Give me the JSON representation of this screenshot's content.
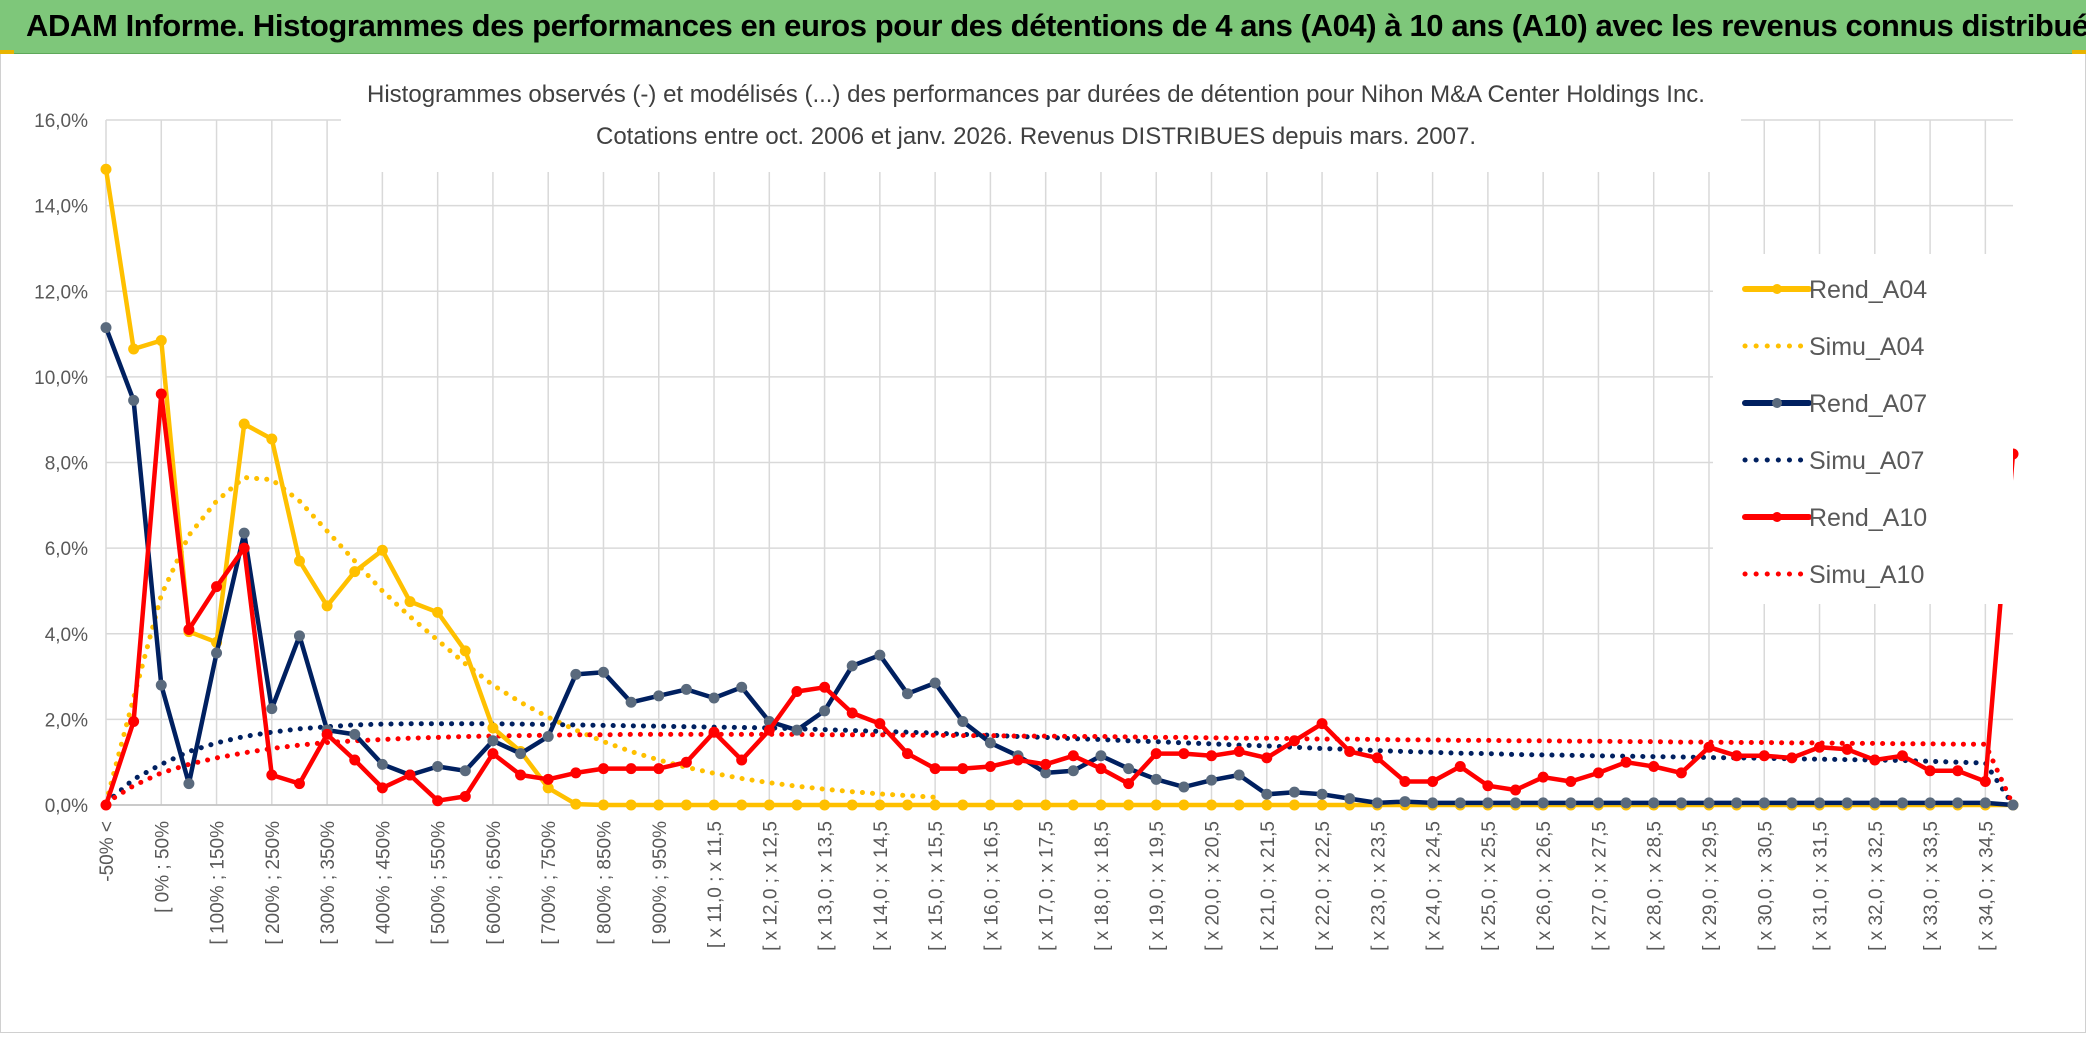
{
  "banner": {
    "title": "ADAM Informe. Histogrammes des performances en euros pour des détentions de 4 ans (A04) à 10 ans (A10) avec les revenus connus distribués"
  },
  "chart_data": {
    "type": "line",
    "title": "Histogrammes observés (-) et modélisés (...) des performances par durées de détention pour Nihon M&A Center Holdings Inc.",
    "subtitle": "Cotations entre oct. 2006 et janv. 2026. Revenus DISTRIBUES depuis mars. 2007.",
    "xlabel": "",
    "ylabel": "",
    "ylim": [
      0,
      16
    ],
    "yticks": [
      "0,0%",
      "2,0%",
      "4,0%",
      "6,0%",
      "8,0%",
      "10,0%",
      "12,0%",
      "14,0%",
      "16,0%"
    ],
    "legend_position": "right",
    "x_tick_labels": [
      "-50% <",
      "[ 0% ; 50%",
      "[ 100% ; 150%",
      "[ 200% ; 250%",
      "[ 300% ; 350%",
      "[ 400% ; 450%",
      "[ 500% ; 550%",
      "[ 600% ; 650%",
      "[ 700% ; 750%",
      "[ 800% ; 850%",
      "[ 900% ; 950%",
      "[ x 11,0 ; x 11,5",
      "[ x 12,0 ; x 12,5",
      "[ x 13,0 ; x 13,5",
      "[ x 14,0 ; x 14,5",
      "[ x 15,0 ; x 15,5",
      "[ x 16,0 ; x 16,5",
      "[ x 17,0 ; x 17,5",
      "[ x 18,0 ; x 18,5",
      "[ x 19,0 ; x 19,5",
      "[ x 20,0 ; x 20,5",
      "[ x 21,0 ; x 21,5",
      "[ x 22,0 ; x 22,5",
      "[ x 23,0 ; x 23,5",
      "[ x 24,0 ; x 24,5",
      "[ x 25,0 ; x 25,5",
      "[ x 26,0 ; x 26,5",
      "[ x 27,0 ; x 27,5",
      "[ x 28,0 ; x 28,5",
      "[ x 29,0 ; x 29,5",
      "[ x 30,0 ; x 30,5",
      "[ x 31,0 ; x 31,5",
      "[ x 32,0 ; x 32,5",
      "[ x 33,0 ; x 33,5",
      "[ x 34,0 ; x 34,5"
    ],
    "series": [
      {
        "name": "Rend_A04",
        "style": "solid",
        "color": "#ffc000",
        "markers": true,
        "values": [
          14.85,
          10.65,
          10.85,
          4.05,
          3.8,
          8.9,
          8.55,
          5.7,
          4.65,
          5.45,
          5.95,
          4.75,
          4.5,
          3.6,
          1.8,
          1.25,
          0.4,
          0.02,
          0.0,
          0.0,
          0.0,
          0.0,
          0.0,
          0.0,
          0.0,
          0.0,
          0.0,
          0.0,
          0.0,
          0.0,
          0.0,
          0.0,
          0.0,
          0.0,
          0.0,
          0.0,
          0.0,
          0.0,
          0.0,
          0.0,
          0.0,
          0.0,
          0.0,
          0.0,
          0.0,
          0.0,
          0.0,
          0.0
        ]
      },
      {
        "name": "Simu_A04",
        "style": "dotted",
        "color": "#ffc000",
        "markers": false,
        "values": [
          0.05,
          2.5,
          4.9,
          6.3,
          7.1,
          7.65,
          7.6,
          7.1,
          6.4,
          5.7,
          5.0,
          4.4,
          3.85,
          3.3,
          2.8,
          2.4,
          2.05,
          1.75,
          1.48,
          1.25,
          1.05,
          0.88,
          0.74,
          0.62,
          0.52,
          0.44,
          0.37,
          0.31,
          0.26,
          0.22,
          0.18,
          0.15,
          0.13,
          0.11,
          0.09,
          0.07,
          0.06,
          0.05,
          0.04,
          0.03,
          0.03,
          0.02,
          0.02,
          0.01,
          0.01,
          0.01,
          0.01,
          0.0
        ]
      },
      {
        "name": "Rend_A07",
        "style": "solid",
        "color": "#002060",
        "markers": true,
        "values": [
          11.15,
          9.45,
          2.8,
          0.5,
          3.55,
          6.35,
          2.25,
          3.95,
          1.75,
          1.65,
          0.95,
          0.7,
          0.9,
          0.8,
          1.5,
          1.2,
          1.6,
          3.05,
          3.1,
          2.4,
          2.55,
          2.7,
          2.5,
          2.75,
          1.95,
          1.75,
          2.2,
          3.25,
          3.5,
          2.6,
          2.85,
          1.95,
          1.45,
          1.15,
          0.75,
          0.8,
          1.15,
          0.85,
          0.6,
          0.42,
          0.58,
          0.7,
          0.25,
          0.3,
          0.25,
          0.15,
          0.05,
          0.08
        ]
      },
      {
        "name": "Simu_A07",
        "style": "dotted",
        "color": "#002060",
        "markers": false,
        "values": [
          0.05,
          0.6,
          0.95,
          1.25,
          1.45,
          1.6,
          1.7,
          1.78,
          1.83,
          1.87,
          1.89,
          1.9,
          1.9,
          1.9,
          1.9,
          1.89,
          1.88,
          1.87,
          1.86,
          1.85,
          1.84,
          1.83,
          1.82,
          1.81,
          1.8,
          1.78,
          1.76,
          1.74,
          1.72,
          1.7,
          1.68,
          1.65,
          1.63,
          1.6,
          1.58,
          1.55,
          1.53,
          1.5,
          1.48,
          1.45,
          1.43,
          1.4,
          1.38,
          1.35,
          1.32,
          1.3,
          1.27,
          1.25
        ]
      },
      {
        "name": "Rend_A10",
        "style": "solid",
        "color": "#ff0000",
        "markers": true,
        "values": [
          0.0,
          1.95,
          9.6,
          4.1,
          5.1,
          6.0,
          0.7,
          0.5,
          1.65,
          1.05,
          0.4,
          0.7,
          0.1,
          0.2,
          1.2,
          0.7,
          0.6,
          0.75,
          0.85,
          0.85,
          0.85,
          1.0,
          1.7,
          1.05,
          1.75,
          2.65,
          2.75,
          2.15,
          1.9,
          1.2,
          0.85,
          0.85,
          0.9,
          1.05,
          0.95,
          1.15,
          0.85,
          0.5,
          1.2,
          1.2,
          1.15,
          1.25,
          1.1,
          1.5,
          1.9,
          1.25,
          1.1,
          0.55
        ]
      },
      {
        "name": "Simu_A10",
        "style": "dotted",
        "color": "#ff0000",
        "markers": false,
        "values": [
          0.05,
          0.45,
          0.75,
          0.95,
          1.1,
          1.22,
          1.32,
          1.4,
          1.46,
          1.5,
          1.53,
          1.56,
          1.58,
          1.6,
          1.61,
          1.62,
          1.63,
          1.64,
          1.64,
          1.65,
          1.65,
          1.65,
          1.65,
          1.65,
          1.65,
          1.65,
          1.64,
          1.64,
          1.64,
          1.63,
          1.63,
          1.62,
          1.62,
          1.61,
          1.61,
          1.6,
          1.6,
          1.59,
          1.58,
          1.58,
          1.57,
          1.56,
          1.56,
          1.55,
          1.54,
          1.54,
          1.53,
          1.52
        ]
      }
    ],
    "series_tail": {
      "Rend_A04": [
        0.0,
        0.0,
        0.0,
        0.0,
        0.0,
        0.0,
        0.0,
        0.0,
        0.0,
        0.0,
        0.0,
        0.0,
        0.0,
        0.0,
        0.0,
        0.0,
        0.0,
        0.0,
        0.0,
        0.0,
        0.0,
        0.0
      ],
      "Simu_A04": [
        0.0,
        0.0,
        0.0,
        0.0,
        0.0,
        0.0,
        0.0,
        0.0,
        0.0,
        0.0,
        0.0,
        0.0,
        0.0,
        0.0,
        0.0,
        0.0,
        0.0,
        0.0,
        0.0,
        0.0,
        0.0,
        0.0
      ],
      "Rend_A07": [
        0.05,
        0.05,
        0.05,
        0.05,
        0.05,
        0.05,
        0.05,
        0.05,
        0.05,
        0.05,
        0.05,
        0.05,
        0.05,
        0.05,
        0.05,
        0.05,
        0.05,
        0.05,
        0.05,
        0.05,
        0.05,
        0.0
      ],
      "Simu_A07": [
        1.23,
        1.21,
        1.2,
        1.18,
        1.17,
        1.16,
        1.15,
        1.14,
        1.13,
        1.12,
        1.11,
        1.1,
        1.09,
        1.08,
        1.07,
        1.06,
        1.05,
        1.04,
        1.02,
        1.0,
        0.98,
        0.0
      ],
      "Rend_A10": [
        0.55,
        0.9,
        0.45,
        0.35,
        0.65,
        0.55,
        0.75,
        1.0,
        0.9,
        0.75,
        1.35,
        1.15,
        1.15,
        1.1,
        1.35,
        1.3,
        1.05,
        1.15,
        0.8,
        0.8,
        0.55,
        8.2
      ],
      "Simu_A10": [
        1.52,
        1.51,
        1.51,
        1.5,
        1.5,
        1.49,
        1.49,
        1.48,
        1.48,
        1.47,
        1.47,
        1.46,
        1.46,
        1.45,
        1.45,
        1.44,
        1.44,
        1.43,
        1.43,
        1.42,
        1.42,
        0.0
      ]
    }
  }
}
